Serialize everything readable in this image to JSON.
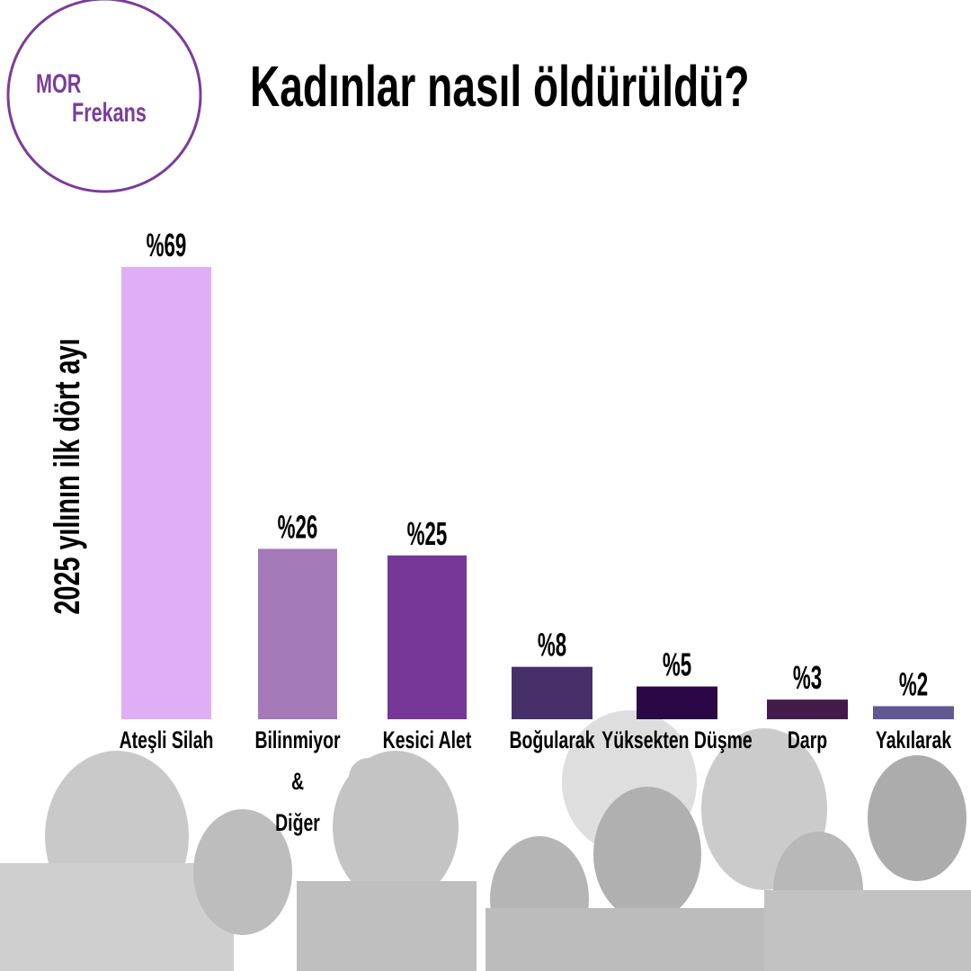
{
  "logo": {
    "line1": "MOR",
    "line2": "Frekans"
  },
  "chart_data": {
    "type": "bar",
    "title": "Kadınlar nasıl öldürüldü?",
    "y_label": "2025 yılının ilk dört ayı",
    "categories": [
      "Ateşli Silah",
      "Bilinmiyor\n&\nDiğer",
      "Kesici Alet",
      "Boğularak",
      "Yüksekten Düşme",
      "Darp",
      "Yakılarak"
    ],
    "values": [
      69,
      26,
      25,
      8,
      5,
      3,
      2
    ],
    "value_labels": [
      "%69",
      "%26",
      "%25",
      "%8",
      "%5",
      "%3",
      "%2"
    ],
    "colors": [
      "#dfaef5",
      "#a479b8",
      "#763797",
      "#47306a",
      "#2a0845",
      "#431a4a",
      "#625891"
    ]
  }
}
